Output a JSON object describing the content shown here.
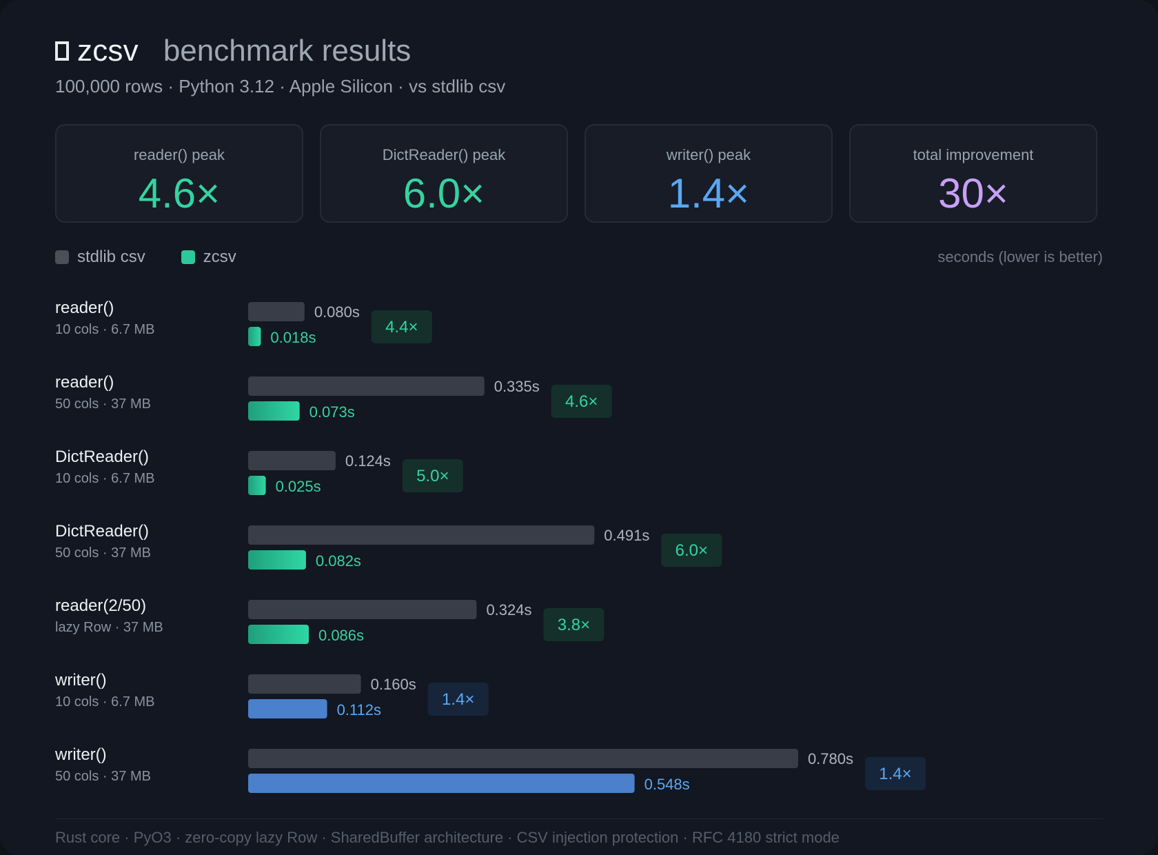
{
  "header": {
    "logo": "zcsv",
    "title": "benchmark results",
    "subtitle": "100,000 rows · Python 3.12 · Apple Silicon · vs stdlib csv"
  },
  "stats": [
    {
      "label": "reader() peak",
      "value": "4.6×",
      "color": "#35d3a0"
    },
    {
      "label": "DictReader() peak",
      "value": "6.0×",
      "color": "#35d3a0"
    },
    {
      "label": "writer() peak",
      "value": "1.4×",
      "color": "#5aa8f5"
    },
    {
      "label": "total improvement",
      "value": "30×",
      "color": "#c8a0f6"
    }
  ],
  "legend": {
    "items": [
      {
        "name": "stdlib csv",
        "color": "#4a4f58"
      },
      {
        "name": "zcsv",
        "color": "#2ec99a"
      }
    ],
    "unit_note": "seconds (lower is better)"
  },
  "colors": {
    "stdlib": "#383d47",
    "zcsv_green": "#2ec99a",
    "zcsv_blue": "#4a80cc",
    "green_text": "#35d3a0",
    "blue_text": "#5aa8f5",
    "green_badge_bg": "#15302b",
    "blue_badge_bg": "#17253a",
    "stdlib_text": "#aeb5c0"
  },
  "chart_data": {
    "type": "bar",
    "orientation": "horizontal",
    "xlabel": "seconds (lower is better)",
    "categories": [
      {
        "name": "reader()",
        "sub": "10 cols · 6.7 MB"
      },
      {
        "name": "reader()",
        "sub": "50 cols · 37 MB"
      },
      {
        "name": "DictReader()",
        "sub": "10 cols · 6.7 MB"
      },
      {
        "name": "DictReader()",
        "sub": "50 cols · 37 MB"
      },
      {
        "name": "reader(2/50)",
        "sub": "lazy Row · 37 MB"
      },
      {
        "name": "writer()",
        "sub": "10 cols · 6.7 MB"
      },
      {
        "name": "writer()",
        "sub": "50 cols · 37 MB"
      }
    ],
    "series": [
      {
        "name": "stdlib csv",
        "values": [
          0.08,
          0.335,
          0.124,
          0.491,
          0.324,
          0.16,
          0.78
        ],
        "labels": [
          "0.080s",
          "0.335s",
          "0.124s",
          "0.491s",
          "0.324s",
          "0.160s",
          "0.780s"
        ]
      },
      {
        "name": "zcsv",
        "values": [
          0.018,
          0.073,
          0.025,
          0.082,
          0.086,
          0.112,
          0.548
        ],
        "labels": [
          "0.018s",
          "0.073s",
          "0.025s",
          "0.082s",
          "0.086s",
          "0.112s",
          "0.548s"
        ]
      }
    ],
    "speedups": [
      "4.4×",
      "4.6×",
      "5.0×",
      "6.0×",
      "3.8×",
      "1.4×",
      "1.4×"
    ],
    "row_kind": [
      "read",
      "read",
      "read",
      "read",
      "read",
      "write",
      "write"
    ]
  },
  "footer": "Rust core · PyO3 · zero-copy lazy Row · SharedBuffer architecture · CSV injection protection · RFC 4180 strict mode"
}
